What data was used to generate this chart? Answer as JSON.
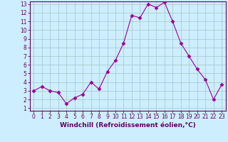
{
  "x": [
    0,
    1,
    2,
    3,
    4,
    5,
    6,
    7,
    8,
    9,
    10,
    11,
    12,
    13,
    14,
    15,
    16,
    17,
    18,
    19,
    20,
    21,
    22,
    23
  ],
  "y": [
    3.0,
    3.5,
    3.0,
    2.8,
    1.5,
    2.2,
    2.6,
    4.0,
    3.2,
    5.2,
    6.5,
    8.5,
    11.7,
    11.4,
    13.0,
    12.6,
    13.2,
    11.0,
    8.5,
    7.0,
    5.5,
    4.3,
    2.0,
    3.7
  ],
  "line_color": "#990099",
  "marker": "D",
  "marker_size": 2.5,
  "bg_color": "#cceeff",
  "grid_color": "#aacccc",
  "xlabel": "Windchill (Refroidissement éolien,°C)",
  "ylim_min": 1,
  "ylim_max": 13,
  "xlim_min": 0,
  "xlim_max": 23,
  "yticks": [
    1,
    2,
    3,
    4,
    5,
    6,
    7,
    8,
    9,
    10,
    11,
    12,
    13
  ],
  "xticks": [
    0,
    1,
    2,
    3,
    4,
    5,
    6,
    7,
    8,
    9,
    10,
    11,
    12,
    13,
    14,
    15,
    16,
    17,
    18,
    19,
    20,
    21,
    22,
    23
  ],
  "line_color2": "#660066",
  "tick_fontsize": 5.5,
  "label_fontsize": 6.5
}
